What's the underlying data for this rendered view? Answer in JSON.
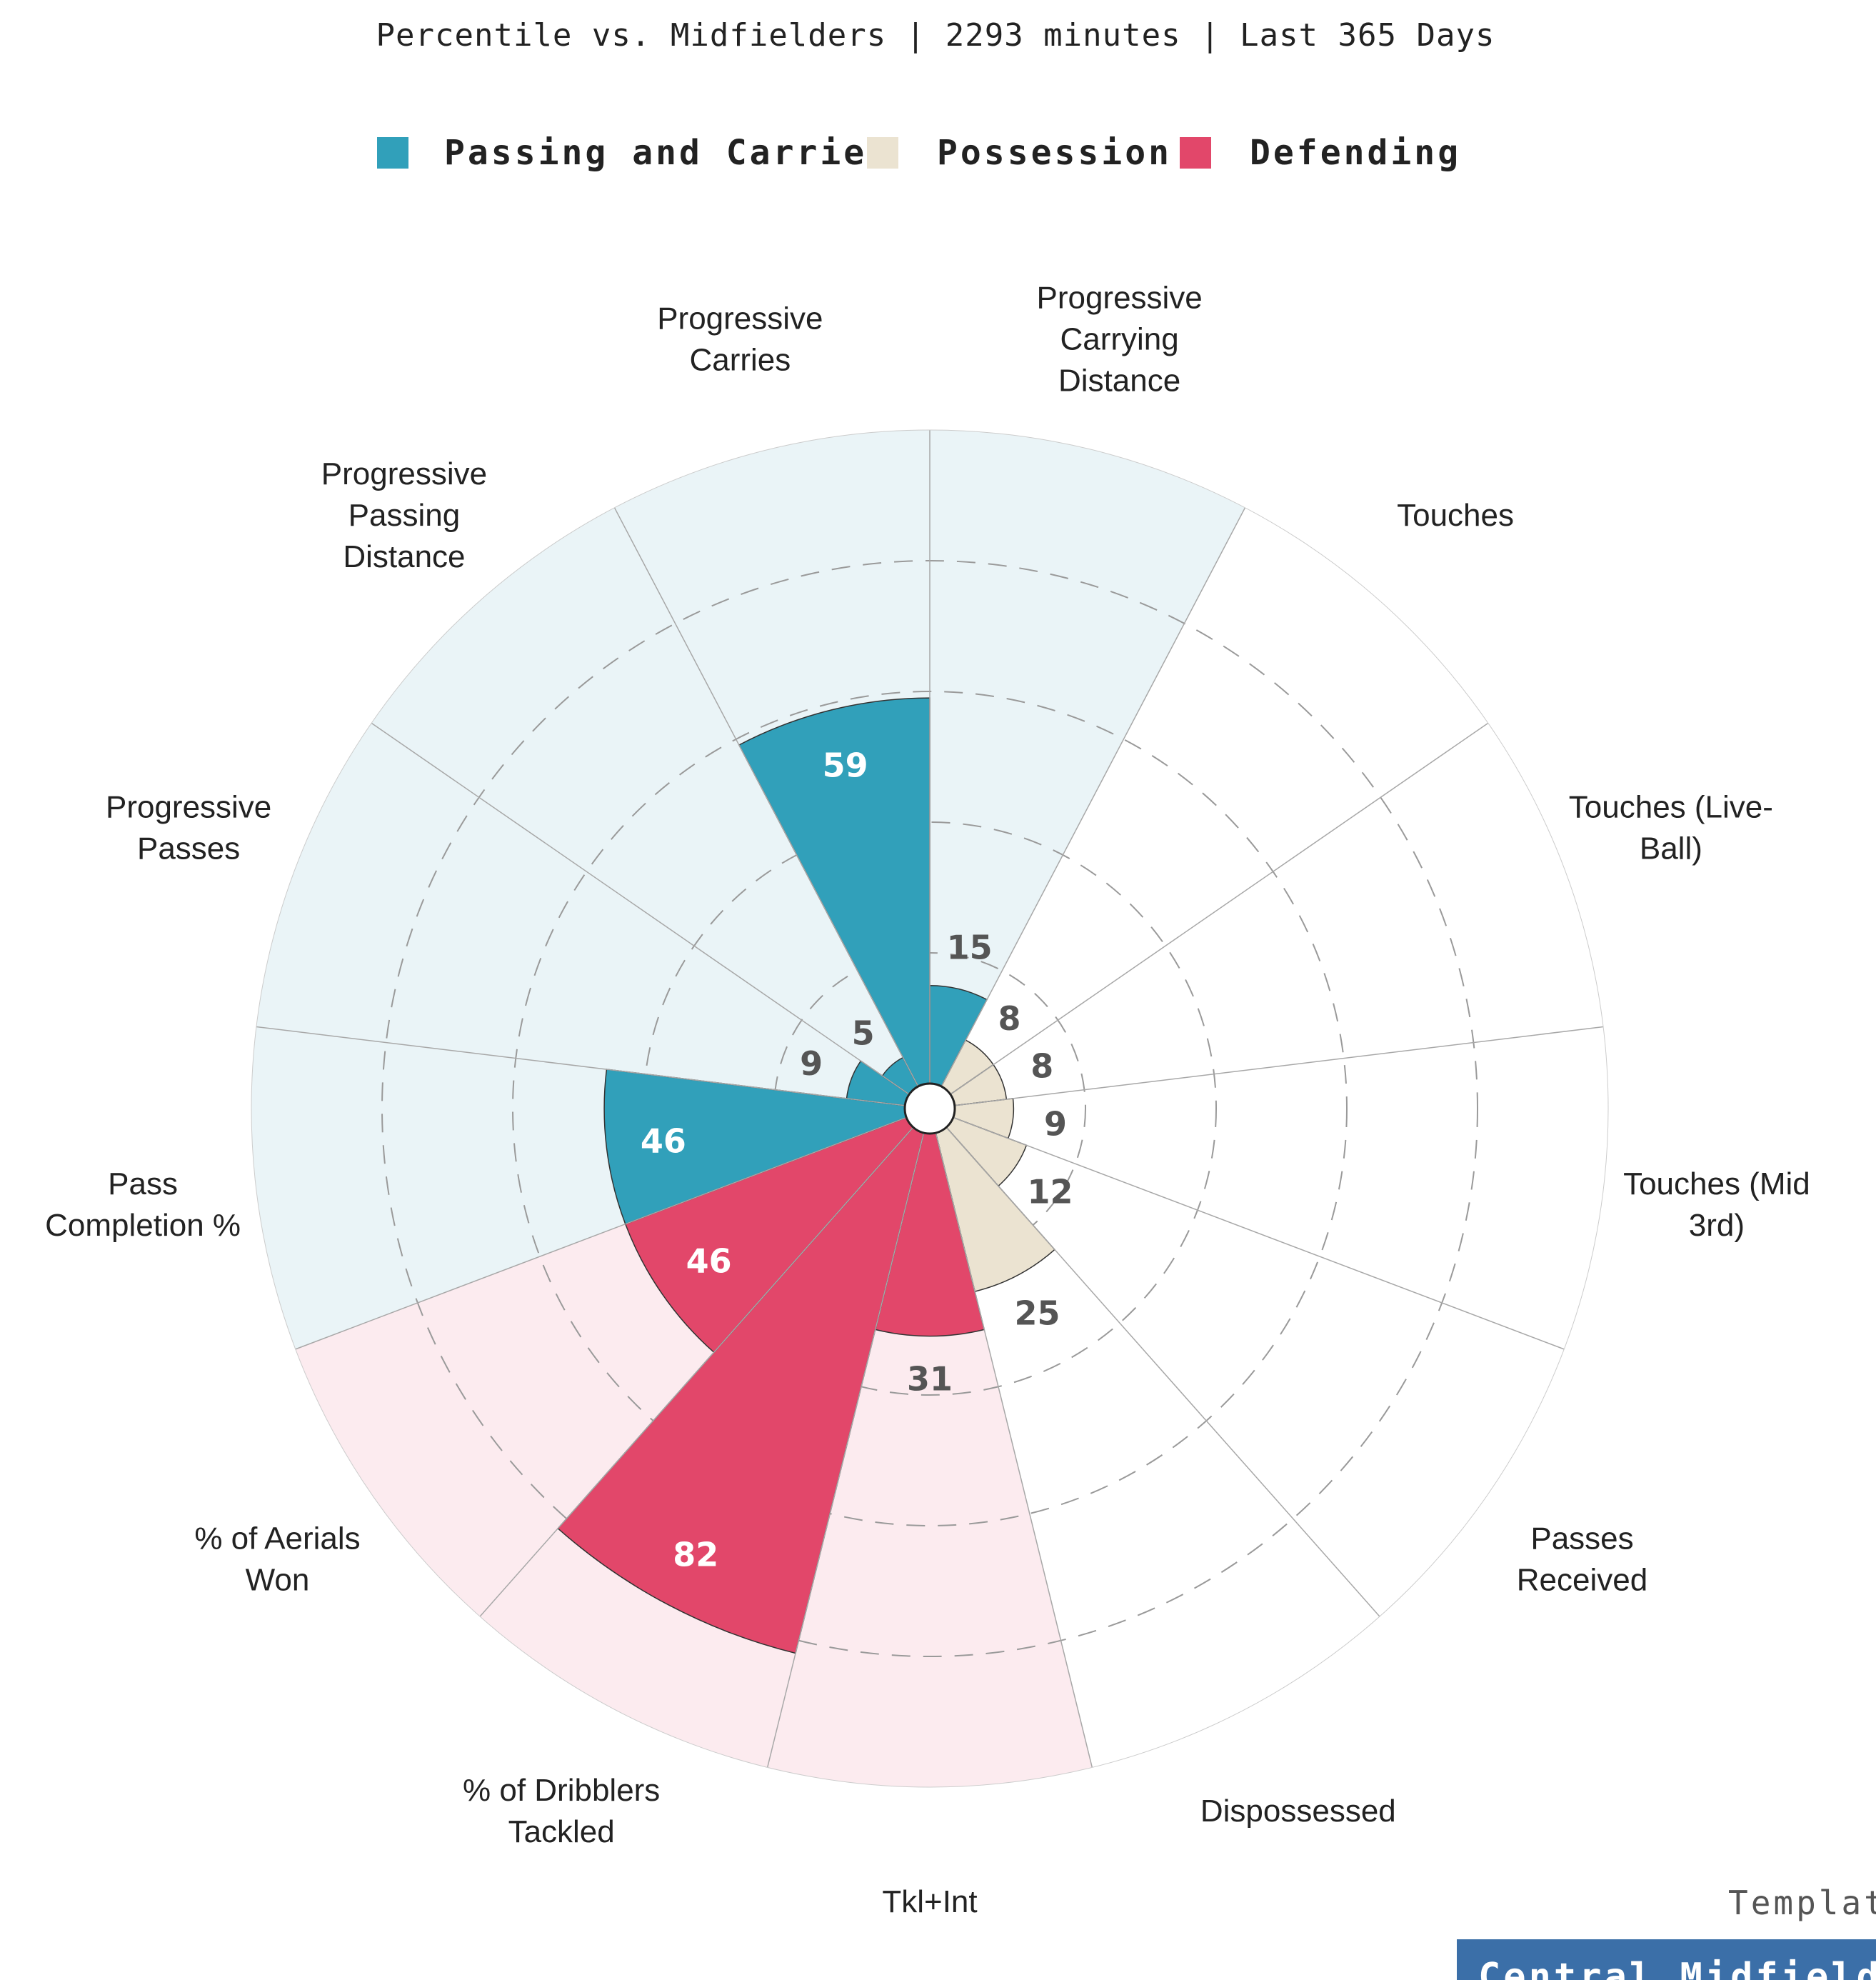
{
  "subtitle": "Percentile vs. Midfielders | 2293 minutes | Last 365 Days",
  "footer": {
    "template_text": "Templat",
    "badge_text": "Central Midfielde"
  },
  "colors": {
    "passing_and_carries": "#31a0ba",
    "passing_and_carries_bg": "#eaf4f7",
    "possession": "#ebe3d1",
    "possession_bg": "#ffffff",
    "defending": "#e2476a",
    "defending_bg": "#fcebef",
    "badge": "#3b6fa8"
  },
  "chart_data": {
    "type": "polar-bar",
    "title": "Percentile vs. Midfielders | 2293 minutes | Last 365 Days",
    "rlim": [
      0,
      100
    ],
    "grid": true,
    "gridlines_dashed": [
      20,
      40,
      60,
      80
    ],
    "legend": {
      "placement": "top-center",
      "entries": [
        "Passing and Carries",
        "Possession",
        "Defending"
      ]
    },
    "categories": [
      {
        "label": "Progressive Carrying Distance",
        "lines": [
          "Progressive",
          "Carrying",
          "Distance"
        ],
        "value": 15,
        "group": "Passing and Carries"
      },
      {
        "label": "Touches",
        "lines": [
          "Touches"
        ],
        "value": 8,
        "group": "Possession"
      },
      {
        "label": "Touches (Live-Ball)",
        "lines": [
          "Touches (Live-",
          "Ball)"
        ],
        "value": 8,
        "group": "Possession"
      },
      {
        "label": "Touches (Mid 3rd)",
        "lines": [
          "Touches (Mid",
          "3rd)"
        ],
        "value": 9,
        "group": "Possession"
      },
      {
        "label": "Passes Received",
        "lines": [
          "Passes",
          "Received"
        ],
        "value": 12,
        "group": "Possession"
      },
      {
        "label": "Dispossessed",
        "lines": [
          "Dispossessed"
        ],
        "value": 25,
        "group": "Possession"
      },
      {
        "label": "Tkl+Int",
        "lines": [
          "Tkl+Int"
        ],
        "value": 31,
        "group": "Defending"
      },
      {
        "label": "% of Dribblers Tackled",
        "lines": [
          "% of Dribblers",
          "Tackled"
        ],
        "value": 82,
        "group": "Defending"
      },
      {
        "label": "% of Aerials Won",
        "lines": [
          "% of Aerials",
          "Won"
        ],
        "value": 46,
        "group": "Defending"
      },
      {
        "label": "Pass Completion %",
        "lines": [
          "Pass",
          "Completion %"
        ],
        "value": 46,
        "group": "Passing and Carries"
      },
      {
        "label": "Progressive Passes",
        "lines": [
          "Progressive",
          "Passes"
        ],
        "value": 9,
        "group": "Passing and Carries"
      },
      {
        "label": "Progressive Passing Distance",
        "lines": [
          "Progressive",
          "Passing",
          "Distance"
        ],
        "value": 5,
        "group": "Passing and Carries"
      },
      {
        "label": "Progressive Carries",
        "lines": [
          "Progressive",
          "Carries"
        ],
        "value": 59,
        "group": "Passing and Carries"
      }
    ]
  }
}
